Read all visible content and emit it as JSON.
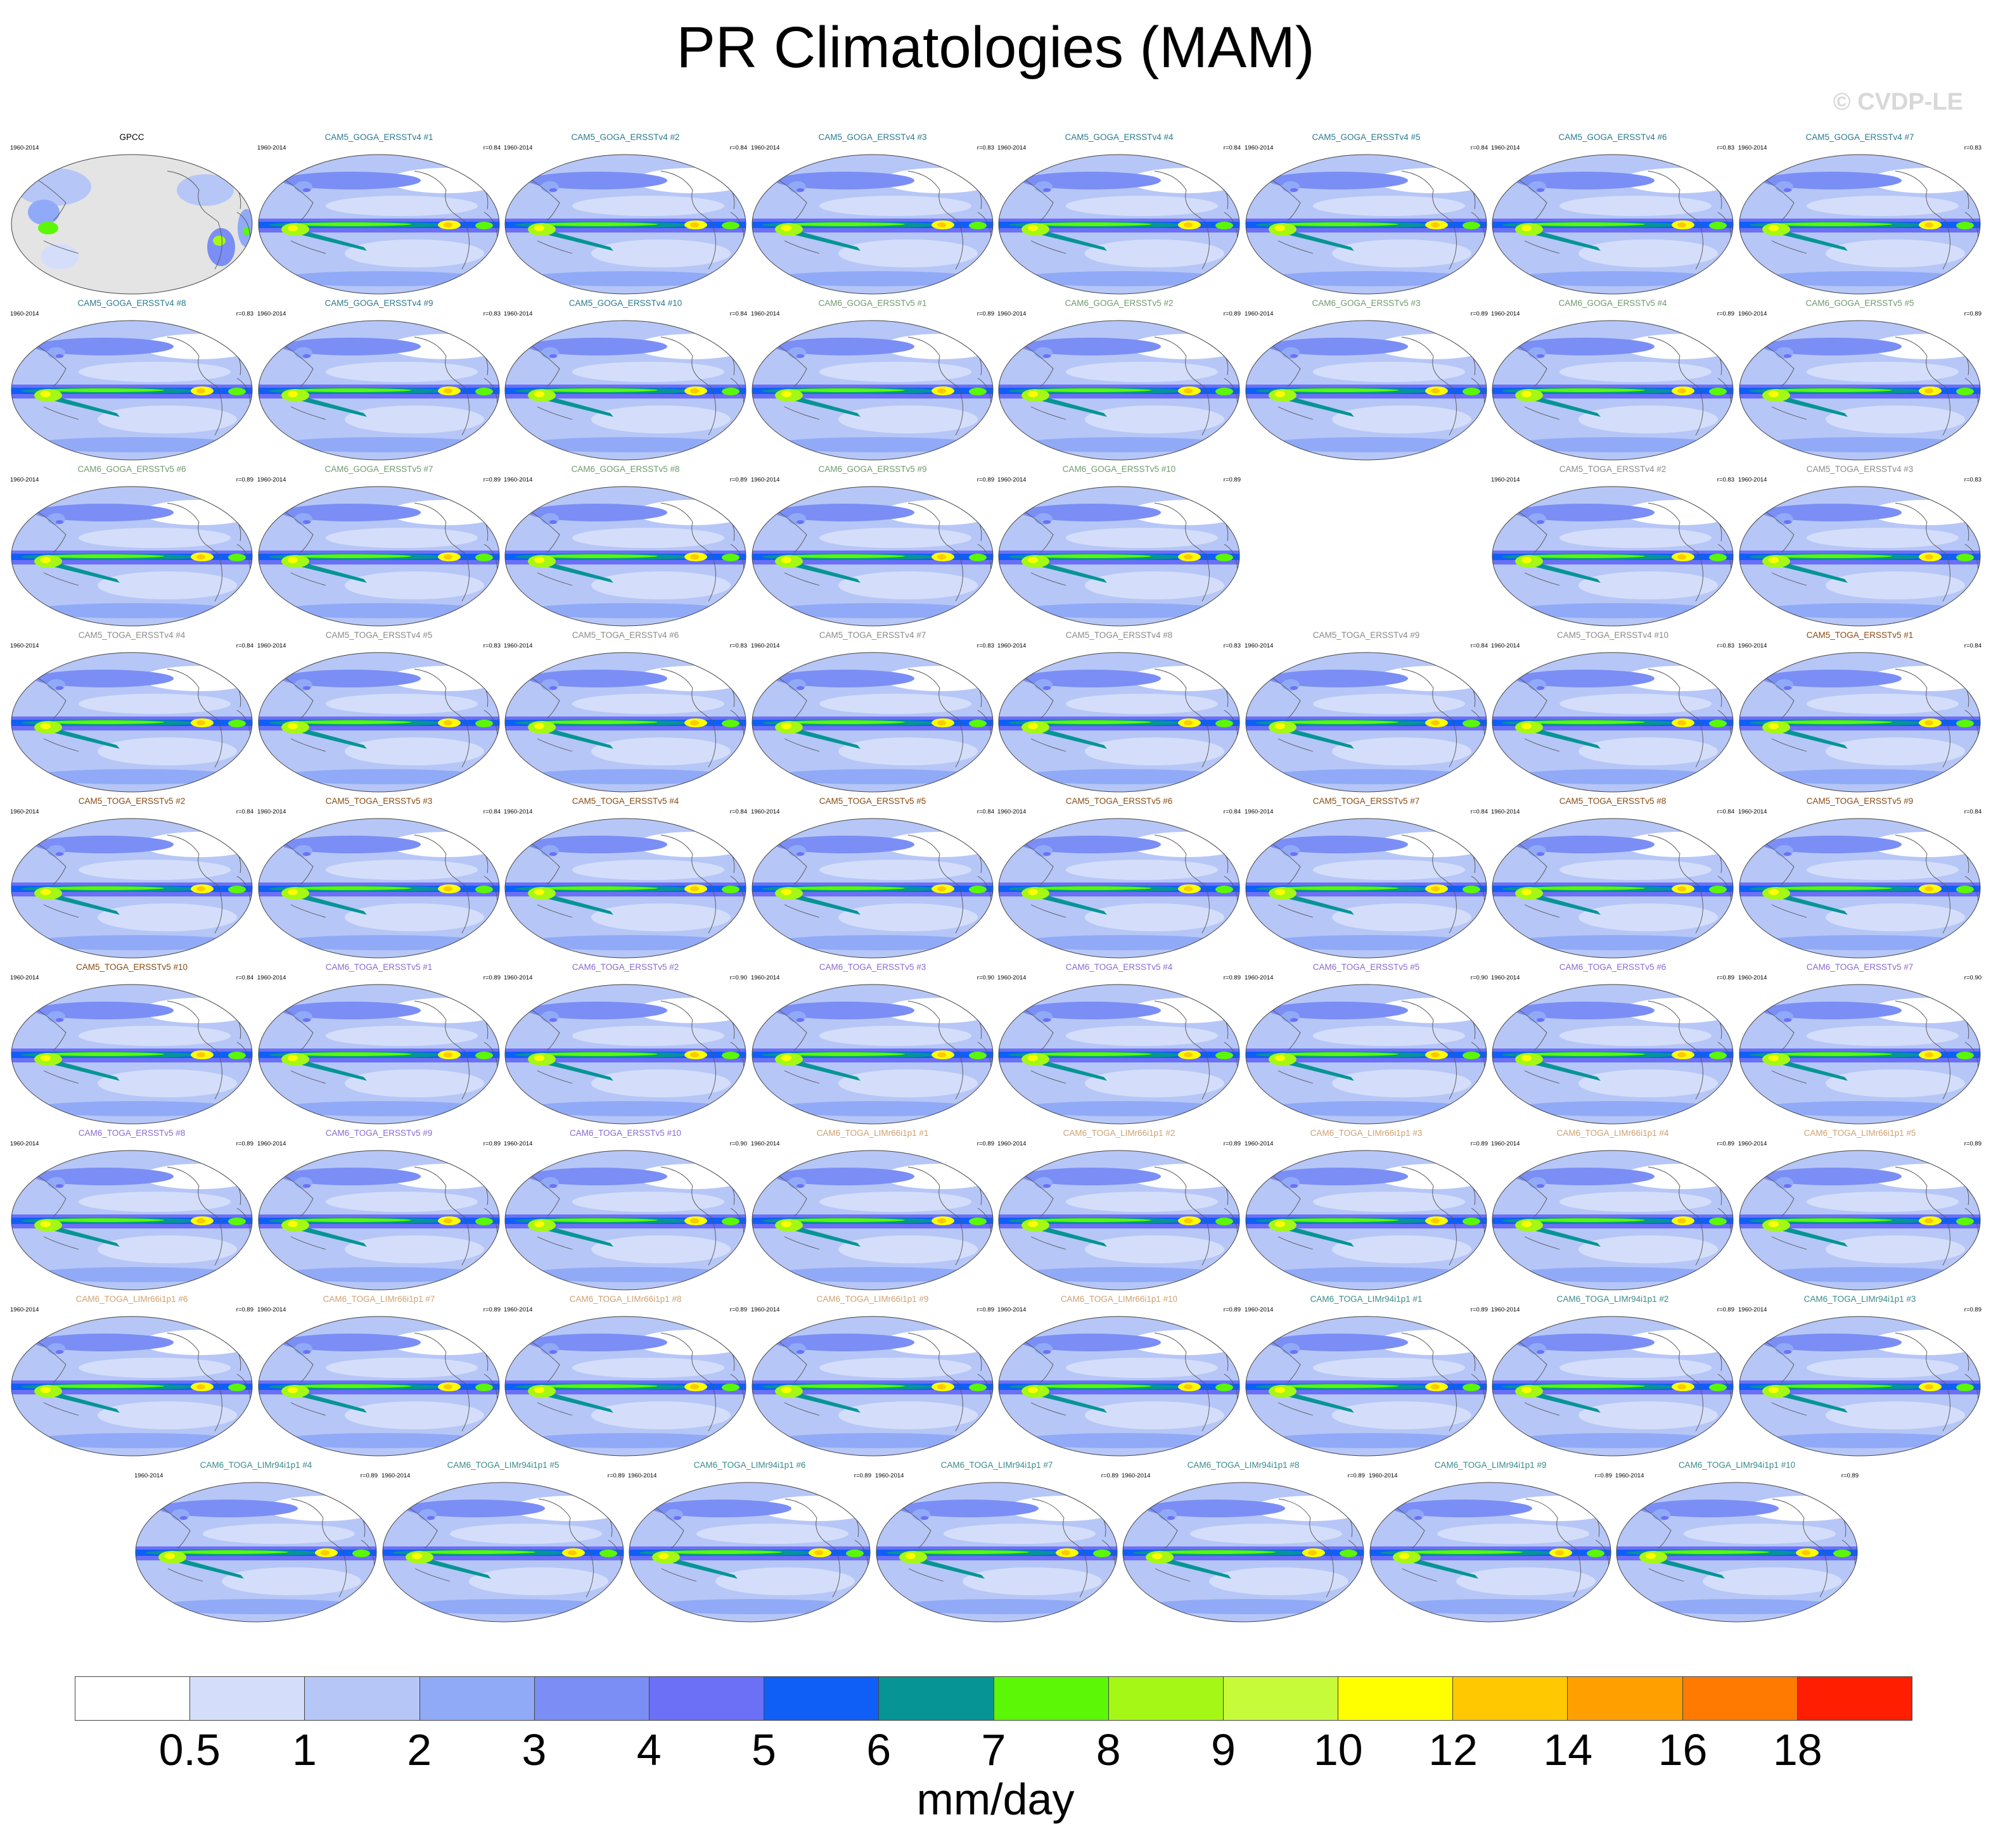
{
  "title": "PR Climatologies (MAM)",
  "watermark": "© CVDP-LE",
  "observation": {
    "name": "GPCC",
    "years": "1960-2014",
    "color": "#000000"
  },
  "member_color_groups": [
    {
      "prefix": "CAM5_GOGA_ERSSTv4",
      "color": "#2b7a90",
      "r": [
        "0.84",
        "0.84",
        "0.83",
        "0.84",
        "0.84",
        "0.83",
        "0.83",
        "0.83",
        "0.83",
        "0.84"
      ]
    },
    {
      "prefix": "CAM6_GOGA_ERSSTv5",
      "color": "#6f9a6f",
      "r": [
        "0.89",
        "0.89",
        "0.89",
        "0.89",
        "0.89",
        "0.89",
        "0.89",
        "0.89",
        "0.89",
        "0.89"
      ]
    },
    {
      "prefix": "CAM5_TOGA_ERSSTv4",
      "color": "#8a8a8a",
      "r": [
        "",
        "0.83",
        "0.83",
        "0.84",
        "0.83",
        "0.83",
        "0.83",
        "0.83",
        "0.84",
        "0.83"
      ]
    },
    {
      "prefix": "CAM5_TOGA_ERSSTv5",
      "color": "#8a4a10",
      "r": [
        "0.84",
        "0.84",
        "0.84",
        "0.84",
        "0.84",
        "0.84",
        "0.84",
        "0.84",
        "0.84",
        "0.84"
      ]
    },
    {
      "prefix": "CAM6_TOGA_ERSSTv5",
      "color": "#8a6ad0",
      "r": [
        "0.89",
        "0.90",
        "0.90",
        "0.89",
        "0.90",
        "0.89",
        "0.90",
        "0.89",
        "0.89",
        "0.90"
      ]
    },
    {
      "prefix": "CAM6_TOGA_LIMr66i1p1",
      "color": "#d0a070",
      "r": [
        "0.89",
        "0.89",
        "0.89",
        "0.89",
        "0.89",
        "0.89",
        "0.89",
        "0.89",
        "0.89",
        "0.89"
      ]
    },
    {
      "prefix": "CAM6_TOGA_LIMr94i1p1",
      "color": "#3a8a8a",
      "r": [
        "0.89",
        "0.89",
        "0.89",
        "0.89",
        "0.89",
        "0.89",
        "0.89",
        "0.89",
        "0.89",
        "0.89"
      ]
    }
  ],
  "panels": [
    {
      "label": "GPCC",
      "years": "1960-2014",
      "r": "",
      "color": "#000000",
      "obs": true
    },
    {
      "label": "CAM5_GOGA_ERSSTv4 #1",
      "years": "1960-2014",
      "r": "r=0.84",
      "color": "#2b7a90"
    },
    {
      "label": "CAM5_GOGA_ERSSTv4 #2",
      "years": "1960-2014",
      "r": "r=0.84",
      "color": "#2b7a90"
    },
    {
      "label": "CAM5_GOGA_ERSSTv4 #3",
      "years": "1960-2014",
      "r": "r=0.83",
      "color": "#2b7a90"
    },
    {
      "label": "CAM5_GOGA_ERSSTv4 #4",
      "years": "1960-2014",
      "r": "r=0.84",
      "color": "#2b7a90"
    },
    {
      "label": "CAM5_GOGA_ERSSTv4 #5",
      "years": "1960-2014",
      "r": "r=0.84",
      "color": "#2b7a90"
    },
    {
      "label": "CAM5_GOGA_ERSSTv4 #6",
      "years": "1960-2014",
      "r": "r=0.83",
      "color": "#2b7a90"
    },
    {
      "label": "CAM5_GOGA_ERSSTv4 #7",
      "years": "1960-2014",
      "r": "r=0.83",
      "color": "#2b7a90"
    },
    {
      "label": "CAM5_GOGA_ERSSTv4 #8",
      "years": "1960-2014",
      "r": "r=0.83",
      "color": "#2b7a90"
    },
    {
      "label": "CAM5_GOGA_ERSSTv4 #9",
      "years": "1960-2014",
      "r": "r=0.83",
      "color": "#2b7a90"
    },
    {
      "label": "CAM5_GOGA_ERSSTv4 #10",
      "years": "1960-2014",
      "r": "r=0.84",
      "color": "#2b7a90"
    },
    {
      "label": "CAM6_GOGA_ERSSTv5 #1",
      "years": "1960-2014",
      "r": "r=0.89",
      "color": "#6f9a6f"
    },
    {
      "label": "CAM6_GOGA_ERSSTv5 #2",
      "years": "1960-2014",
      "r": "r=0.89",
      "color": "#6f9a6f"
    },
    {
      "label": "CAM6_GOGA_ERSSTv5 #3",
      "years": "1960-2014",
      "r": "r=0.89",
      "color": "#6f9a6f"
    },
    {
      "label": "CAM6_GOGA_ERSSTv5 #4",
      "years": "1960-2014",
      "r": "r=0.89",
      "color": "#6f9a6f"
    },
    {
      "label": "CAM6_GOGA_ERSSTv5 #5",
      "years": "1960-2014",
      "r": "r=0.89",
      "color": "#6f9a6f"
    },
    {
      "label": "CAM6_GOGA_ERSSTv5 #6",
      "years": "1960-2014",
      "r": "r=0.89",
      "color": "#6f9a6f"
    },
    {
      "label": "CAM6_GOGA_ERSSTv5 #7",
      "years": "1960-2014",
      "r": "r=0.89",
      "color": "#6f9a6f"
    },
    {
      "label": "CAM6_GOGA_ERSSTv5 #8",
      "years": "1960-2014",
      "r": "r=0.89",
      "color": "#6f9a6f"
    },
    {
      "label": "CAM6_GOGA_ERSSTv5 #9",
      "years": "1960-2014",
      "r": "r=0.89",
      "color": "#6f9a6f"
    },
    {
      "label": "CAM6_GOGA_ERSSTv5 #10",
      "years": "1960-2014",
      "r": "r=0.89",
      "color": "#6f9a6f"
    },
    {
      "label": "CAM5_TOGA_ERSSTv4 #2",
      "years": "1960-2014",
      "r": "r=0.83",
      "color": "#8a8a8a"
    },
    {
      "label": "CAM5_TOGA_ERSSTv4 #3",
      "years": "1960-2014",
      "r": "r=0.83",
      "color": "#8a8a8a"
    },
    {
      "label": "CAM5_TOGA_ERSSTv4 #4",
      "years": "1960-2014",
      "r": "r=0.84",
      "color": "#8a8a8a"
    },
    {
      "label": "CAM5_TOGA_ERSSTv4 #5",
      "years": "1960-2014",
      "r": "r=0.83",
      "color": "#8a8a8a"
    },
    {
      "label": "CAM5_TOGA_ERSSTv4 #6",
      "years": "1960-2014",
      "r": "r=0.83",
      "color": "#8a8a8a"
    },
    {
      "label": "CAM5_TOGA_ERSSTv4 #7",
      "years": "1960-2014",
      "r": "r=0.83",
      "color": "#8a8a8a"
    },
    {
      "label": "CAM5_TOGA_ERSSTv4 #8",
      "years": "1960-2014",
      "r": "r=0.83",
      "color": "#8a8a8a"
    },
    {
      "label": "CAM5_TOGA_ERSSTv4 #9",
      "years": "1960-2014",
      "r": "r=0.84",
      "color": "#8a8a8a"
    },
    {
      "label": "CAM5_TOGA_ERSSTv4 #10",
      "years": "1960-2014",
      "r": "r=0.83",
      "color": "#8a8a8a"
    },
    {
      "label": "CAM5_TOGA_ERSSTv5 #1",
      "years": "1960-2014",
      "r": "r=0.84",
      "color": "#8a4a10"
    },
    {
      "label": "CAM5_TOGA_ERSSTv5 #2",
      "years": "1960-2014",
      "r": "r=0.84",
      "color": "#8a4a10"
    },
    {
      "label": "CAM5_TOGA_ERSSTv5 #3",
      "years": "1960-2014",
      "r": "r=0.84",
      "color": "#8a4a10"
    },
    {
      "label": "CAM5_TOGA_ERSSTv5 #4",
      "years": "1960-2014",
      "r": "r=0.84",
      "color": "#8a4a10"
    },
    {
      "label": "CAM5_TOGA_ERSSTv5 #5",
      "years": "1960-2014",
      "r": "r=0.84",
      "color": "#8a4a10"
    },
    {
      "label": "CAM5_TOGA_ERSSTv5 #6",
      "years": "1960-2014",
      "r": "r=0.84",
      "color": "#8a4a10"
    },
    {
      "label": "CAM5_TOGA_ERSSTv5 #7",
      "years": "1960-2014",
      "r": "r=0.84",
      "color": "#8a4a10"
    },
    {
      "label": "CAM5_TOGA_ERSSTv5 #8",
      "years": "1960-2014",
      "r": "r=0.84",
      "color": "#8a4a10"
    },
    {
      "label": "CAM5_TOGA_ERSSTv5 #9",
      "years": "1960-2014",
      "r": "r=0.84",
      "color": "#8a4a10"
    },
    {
      "label": "CAM5_TOGA_ERSSTv5 #10",
      "years": "1960-2014",
      "r": "r=0.84",
      "color": "#8a4a10"
    },
    {
      "label": "CAM6_TOGA_ERSSTv5 #1",
      "years": "1960-2014",
      "r": "r=0.89",
      "color": "#8a6ad0"
    },
    {
      "label": "CAM6_TOGA_ERSSTv5 #2",
      "years": "1960-2014",
      "r": "r=0.90",
      "color": "#8a6ad0"
    },
    {
      "label": "CAM6_TOGA_ERSSTv5 #3",
      "years": "1960-2014",
      "r": "r=0.90",
      "color": "#8a6ad0"
    },
    {
      "label": "CAM6_TOGA_ERSSTv5 #4",
      "years": "1960-2014",
      "r": "r=0.89",
      "color": "#8a6ad0"
    },
    {
      "label": "CAM6_TOGA_ERSSTv5 #5",
      "years": "1960-2014",
      "r": "r=0.90",
      "color": "#8a6ad0"
    },
    {
      "label": "CAM6_TOGA_ERSSTv5 #6",
      "years": "1960-2014",
      "r": "r=0.89",
      "color": "#8a6ad0"
    },
    {
      "label": "CAM6_TOGA_ERSSTv5 #7",
      "years": "1960-2014",
      "r": "r=0.90",
      "color": "#8a6ad0"
    },
    {
      "label": "CAM6_TOGA_ERSSTv5 #8",
      "years": "1960-2014",
      "r": "r=0.89",
      "color": "#8a6ad0"
    },
    {
      "label": "CAM6_TOGA_ERSSTv5 #9",
      "years": "1960-2014",
      "r": "r=0.89",
      "color": "#8a6ad0"
    },
    {
      "label": "CAM6_TOGA_ERSSTv5 #10",
      "years": "1960-2014",
      "r": "r=0.90",
      "color": "#8a6ad0"
    },
    {
      "label": "CAM6_TOGA_LIMr66i1p1 #1",
      "years": "1960-2014",
      "r": "r=0.89",
      "color": "#d0a070"
    },
    {
      "label": "CAM6_TOGA_LIMr66i1p1 #2",
      "years": "1960-2014",
      "r": "r=0.89",
      "color": "#d0a070"
    },
    {
      "label": "CAM6_TOGA_LIMr66i1p1 #3",
      "years": "1960-2014",
      "r": "r=0.89",
      "color": "#d0a070"
    },
    {
      "label": "CAM6_TOGA_LIMr66i1p1 #4",
      "years": "1960-2014",
      "r": "r=0.89",
      "color": "#d0a070"
    },
    {
      "label": "CAM6_TOGA_LIMr66i1p1 #5",
      "years": "1960-2014",
      "r": "r=0.89",
      "color": "#d0a070"
    },
    {
      "label": "CAM6_TOGA_LIMr66i1p1 #6",
      "years": "1960-2014",
      "r": "r=0.89",
      "color": "#d0a070"
    },
    {
      "label": "CAM6_TOGA_LIMr66i1p1 #7",
      "years": "1960-2014",
      "r": "r=0.89",
      "color": "#d0a070"
    },
    {
      "label": "CAM6_TOGA_LIMr66i1p1 #8",
      "years": "1960-2014",
      "r": "r=0.89",
      "color": "#d0a070"
    },
    {
      "label": "CAM6_TOGA_LIMr66i1p1 #9",
      "years": "1960-2014",
      "r": "r=0.89",
      "color": "#d0a070"
    },
    {
      "label": "CAM6_TOGA_LIMr66i1p1 #10",
      "years": "1960-2014",
      "r": "r=0.89",
      "color": "#d0a070"
    },
    {
      "label": "CAM6_TOGA_LIMr94i1p1 #1",
      "years": "1960-2014",
      "r": "r=0.89",
      "color": "#3a8a8a"
    },
    {
      "label": "CAM6_TOGA_LIMr94i1p1 #2",
      "years": "1960-2014",
      "r": "r=0.89",
      "color": "#3a8a8a"
    },
    {
      "label": "CAM6_TOGA_LIMr94i1p1 #3",
      "years": "1960-2014",
      "r": "r=0.89",
      "color": "#3a8a8a"
    },
    {
      "label": "CAM6_TOGA_LIMr94i1p1 #4",
      "years": "1960-2014",
      "r": "r=0.89",
      "color": "#3a8a8a"
    },
    {
      "label": "CAM6_TOGA_LIMr94i1p1 #5",
      "years": "1960-2014",
      "r": "r=0.89",
      "color": "#3a8a8a"
    },
    {
      "label": "CAM6_TOGA_LIMr94i1p1 #6",
      "years": "1960-2014",
      "r": "r=0.89",
      "color": "#3a8a8a"
    },
    {
      "label": "CAM6_TOGA_LIMr94i1p1 #7",
      "years": "1960-2014",
      "r": "r=0.89",
      "color": "#3a8a8a"
    },
    {
      "label": "CAM6_TOGA_LIMr94i1p1 #8",
      "years": "1960-2014",
      "r": "r=0.89",
      "color": "#3a8a8a"
    },
    {
      "label": "CAM6_TOGA_LIMr94i1p1 #9",
      "years": "1960-2014",
      "r": "r=0.89",
      "color": "#3a8a8a"
    },
    {
      "label": "CAM6_TOGA_LIMr94i1p1 #10",
      "years": "1960-2014",
      "r": "r=0.89",
      "color": "#3a8a8a"
    }
  ],
  "colorbar": {
    "units": "mm/day",
    "ticks": [
      "0.5",
      "1",
      "2",
      "3",
      "4",
      "5",
      "6",
      "7",
      "8",
      "9",
      "10",
      "12",
      "14",
      "16",
      "18"
    ],
    "colors": [
      "#ffffff",
      "#d4defa",
      "#b6c6f7",
      "#90aaf7",
      "#7a8ef5",
      "#6b70f7",
      "#0f5ff7",
      "#069495",
      "#5cf706",
      "#a5f716",
      "#c6fb3a",
      "#ffff00",
      "#ffc800",
      "#ffa000",
      "#ff7a00",
      "#ff1e00"
    ]
  }
}
